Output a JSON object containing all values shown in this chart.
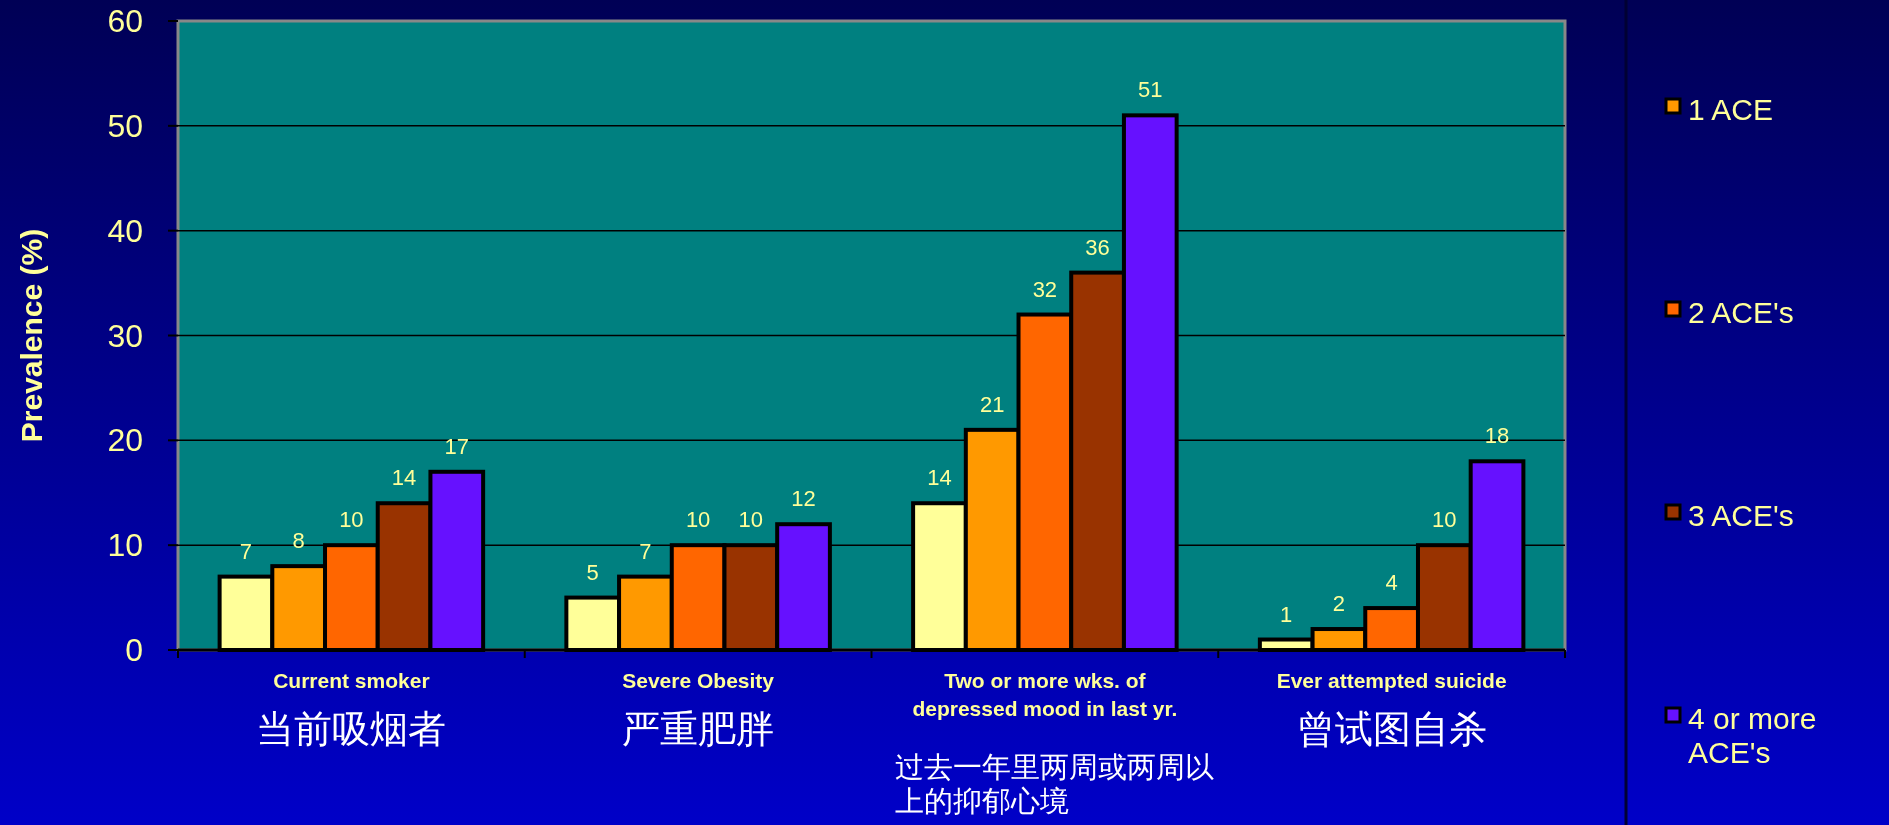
{
  "chart_data": {
    "type": "bar",
    "ylabel": "Prevalence (%)",
    "categories": [
      "Current smoker",
      "Severe Obesity",
      "Two or more wks. of\ndepressed mood in last yr.",
      "Ever attempted suicide"
    ],
    "series": [
      {
        "color": "#ffff99",
        "values": [
          7,
          5,
          14,
          1
        ]
      },
      {
        "name": "1 ACE",
        "color": "#ff9900",
        "values": [
          8,
          7,
          21,
          2
        ]
      },
      {
        "name": "2 ACE's",
        "color": "#ff6600",
        "values": [
          10,
          10,
          32,
          4
        ]
      },
      {
        "name": "3 ACE's",
        "color": "#993300",
        "values": [
          14,
          10,
          36,
          10
        ]
      },
      {
        "name": "4 or more\nACE's",
        "color": "#6611ff",
        "values": [
          17,
          12,
          51,
          18
        ]
      }
    ],
    "ylim": [
      0,
      60
    ],
    "yticks": [
      0,
      10,
      20,
      30,
      40,
      50,
      60
    ],
    "grid": "y",
    "data_labels": true,
    "legend": "right",
    "annotations": [
      "当前吸烟者",
      "严重肥胖",
      "过去一年里两周或两周以上的抑郁心境",
      "曾试图自杀"
    ]
  }
}
